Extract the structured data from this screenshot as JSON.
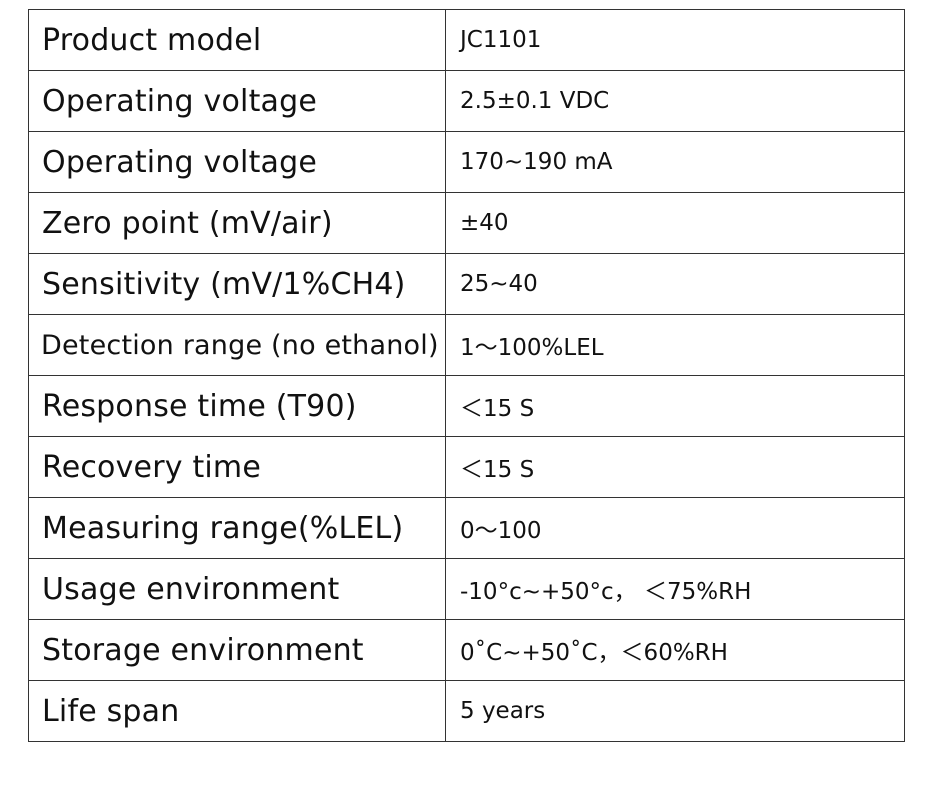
{
  "spec_table": {
    "rows": [
      {
        "parameter": "Product model",
        "value": "JC1101"
      },
      {
        "parameter": "Operating voltage",
        "value": "2.5±0.1 VDC"
      },
      {
        "parameter": "Operating voltage",
        "value": "170~190 mA"
      },
      {
        "parameter": "Zero point (mV/air)",
        "value": "±40"
      },
      {
        "parameter": "Sensitivity (mV/1%CH4)",
        "value": "25~40"
      },
      {
        "parameter": "Detection range (no ethanol)",
        "value": "1～100%LEL"
      },
      {
        "parameter": "Response time (T90)",
        "value": "＜15 S"
      },
      {
        "parameter": "Recovery time",
        "value": "＜15 S"
      },
      {
        "parameter": "Measuring range(%LEL)",
        "value": "0～100"
      },
      {
        "parameter": "Usage environment",
        "value": "-10°c~+50°c， ＜75%RH"
      },
      {
        "parameter": "Storage environment",
        "value": "0˚C~+50˚C，＜60%RH"
      },
      {
        "parameter": "Life span",
        "value": "5 years"
      }
    ]
  }
}
